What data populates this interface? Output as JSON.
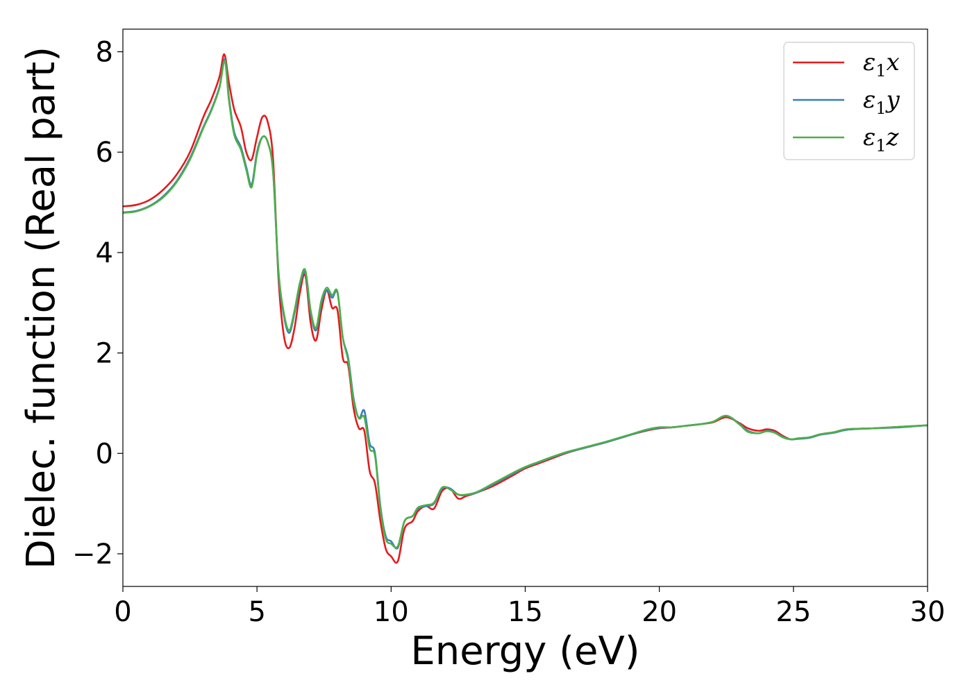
{
  "chart_data": {
    "type": "line",
    "xlabel": "Energy (eV)",
    "ylabel": "Dielec. function (Real part)",
    "xlim": [
      0,
      30
    ],
    "ylim": [
      -2.65,
      8.45
    ],
    "xticks": [
      0,
      5,
      10,
      15,
      20,
      25,
      30
    ],
    "yticks": [
      -2,
      0,
      2,
      4,
      6,
      8
    ],
    "xtick_labels": [
      "0",
      "5",
      "10",
      "15",
      "20",
      "25",
      "30"
    ],
    "ytick_labels": [
      "−2",
      "0",
      "2",
      "4",
      "6",
      "8"
    ],
    "grid": false,
    "legend_position": "top-right",
    "series": [
      {
        "name": "ε₁x",
        "legend_base": "ε",
        "legend_sub": "1",
        "legend_tail": "x",
        "color": "#e41a1c",
        "x": [
          0,
          0.5,
          1,
          1.5,
          2,
          2.5,
          3,
          3.3,
          3.6,
          3.78,
          3.95,
          4.15,
          4.4,
          4.6,
          4.8,
          5.0,
          5.2,
          5.4,
          5.6,
          5.8,
          6.0,
          6.2,
          6.4,
          6.6,
          6.8,
          7.0,
          7.2,
          7.4,
          7.6,
          7.8,
          8.0,
          8.2,
          8.4,
          8.6,
          8.8,
          9.0,
          9.2,
          9.4,
          9.6,
          9.8,
          10.0,
          10.25,
          10.5,
          10.8,
          11.0,
          11.3,
          11.6,
          11.9,
          12.2,
          12.5,
          12.8,
          13.2,
          13.8,
          14.5,
          15.0,
          15.5,
          16.0,
          16.5,
          17.0,
          17.5,
          18.0,
          18.5,
          19.0,
          19.5,
          20.0,
          20.5,
          21.0,
          21.5,
          22.0,
          22.5,
          23.0,
          23.3,
          23.7,
          24.0,
          24.3,
          24.6,
          24.9,
          25.2,
          25.6,
          26.0,
          26.5,
          27.0,
          28.0,
          29.0,
          30.0
        ],
        "y": [
          4.92,
          4.95,
          5.05,
          5.25,
          5.55,
          6.0,
          6.7,
          7.05,
          7.5,
          7.95,
          7.4,
          6.85,
          6.5,
          6.0,
          5.85,
          6.3,
          6.7,
          6.6,
          5.85,
          3.5,
          2.35,
          2.1,
          2.5,
          3.2,
          3.55,
          2.6,
          2.25,
          2.85,
          3.25,
          2.9,
          2.85,
          1.9,
          1.75,
          0.9,
          0.5,
          0.45,
          -0.35,
          -0.6,
          -1.35,
          -1.9,
          -2.05,
          -2.15,
          -1.5,
          -1.35,
          -1.15,
          -1.05,
          -1.1,
          -0.75,
          -0.7,
          -0.9,
          -0.85,
          -0.78,
          -0.65,
          -0.45,
          -0.3,
          -0.2,
          -0.1,
          0.0,
          0.08,
          0.15,
          0.22,
          0.3,
          0.38,
          0.45,
          0.5,
          0.52,
          0.55,
          0.58,
          0.62,
          0.72,
          0.6,
          0.5,
          0.45,
          0.48,
          0.45,
          0.35,
          0.28,
          0.3,
          0.32,
          0.38,
          0.42,
          0.48,
          0.5,
          0.53,
          0.56
        ]
      },
      {
        "name": "ε₁y",
        "legend_base": "ε",
        "legend_sub": "1",
        "legend_tail": "y",
        "color": "#377eb8",
        "x": [
          0,
          0.5,
          1,
          1.5,
          2,
          2.5,
          3,
          3.3,
          3.6,
          3.8,
          3.95,
          4.15,
          4.4,
          4.6,
          4.8,
          5.0,
          5.2,
          5.4,
          5.6,
          5.8,
          6.0,
          6.2,
          6.4,
          6.6,
          6.8,
          7.0,
          7.2,
          7.4,
          7.6,
          7.8,
          8.0,
          8.2,
          8.4,
          8.6,
          8.8,
          9.0,
          9.2,
          9.4,
          9.6,
          9.8,
          10.0,
          10.25,
          10.5,
          10.8,
          11.0,
          11.3,
          11.6,
          11.9,
          12.2,
          12.5,
          12.8,
          13.2,
          13.8,
          14.5,
          15.0,
          15.5,
          16.0,
          16.5,
          17.0,
          17.5,
          18.0,
          18.5,
          19.0,
          19.5,
          20.0,
          20.5,
          21.0,
          21.5,
          22.0,
          22.5,
          23.0,
          23.3,
          23.7,
          24.0,
          24.3,
          24.6,
          24.9,
          25.2,
          25.6,
          26.0,
          26.5,
          27.0,
          28.0,
          29.0,
          30.0
        ],
        "y": [
          4.8,
          4.83,
          4.93,
          5.12,
          5.42,
          5.88,
          6.5,
          6.85,
          7.3,
          7.85,
          7.1,
          6.4,
          6.1,
          5.7,
          5.35,
          6.0,
          6.3,
          6.2,
          5.6,
          3.6,
          2.75,
          2.4,
          2.8,
          3.35,
          3.6,
          2.8,
          2.45,
          3.0,
          3.25,
          3.1,
          3.2,
          2.3,
          1.9,
          1.1,
          0.7,
          0.85,
          0.2,
          0.0,
          -1.05,
          -1.65,
          -1.75,
          -1.88,
          -1.35,
          -1.25,
          -1.1,
          -1.05,
          -1.0,
          -0.7,
          -0.7,
          -0.82,
          -0.83,
          -0.78,
          -0.62,
          -0.42,
          -0.28,
          -0.18,
          -0.08,
          0.01,
          0.08,
          0.15,
          0.22,
          0.3,
          0.38,
          0.46,
          0.51,
          0.52,
          0.55,
          0.58,
          0.63,
          0.75,
          0.58,
          0.45,
          0.4,
          0.45,
          0.42,
          0.33,
          0.28,
          0.29,
          0.31,
          0.37,
          0.41,
          0.47,
          0.5,
          0.52,
          0.56
        ]
      },
      {
        "name": "ε₁z",
        "legend_base": "ε",
        "legend_sub": "1",
        "legend_tail": "z",
        "color": "#4daf4a",
        "x": [
          0,
          0.5,
          1,
          1.5,
          2,
          2.5,
          3,
          3.3,
          3.6,
          3.8,
          3.95,
          4.15,
          4.4,
          4.6,
          4.8,
          5.0,
          5.2,
          5.4,
          5.6,
          5.8,
          6.0,
          6.2,
          6.4,
          6.6,
          6.8,
          7.0,
          7.2,
          7.4,
          7.6,
          7.8,
          8.0,
          8.2,
          8.4,
          8.6,
          8.8,
          9.0,
          9.2,
          9.4,
          9.6,
          9.8,
          10.0,
          10.25,
          10.5,
          10.8,
          11.0,
          11.3,
          11.6,
          11.9,
          12.2,
          12.5,
          12.8,
          13.2,
          13.8,
          14.5,
          15.0,
          15.5,
          16.0,
          16.5,
          17.0,
          17.5,
          18.0,
          18.5,
          19.0,
          19.5,
          20.0,
          20.5,
          21.0,
          21.5,
          22.0,
          22.5,
          23.0,
          23.3,
          23.7,
          24.0,
          24.3,
          24.6,
          24.9,
          25.2,
          25.6,
          26.0,
          26.5,
          27.0,
          28.0,
          29.0,
          30.0
        ],
        "y": [
          4.79,
          4.82,
          4.92,
          5.1,
          5.4,
          5.85,
          6.48,
          6.83,
          7.28,
          7.82,
          7.05,
          6.35,
          6.05,
          5.65,
          5.3,
          5.95,
          6.3,
          6.2,
          5.6,
          3.65,
          2.8,
          2.45,
          2.85,
          3.4,
          3.65,
          2.85,
          2.5,
          3.05,
          3.3,
          3.15,
          3.22,
          2.3,
          1.85,
          1.05,
          0.7,
          0.72,
          0.1,
          -0.05,
          -1.1,
          -1.7,
          -1.8,
          -1.85,
          -1.35,
          -1.25,
          -1.08,
          -1.03,
          -0.98,
          -0.68,
          -0.72,
          -0.82,
          -0.82,
          -0.77,
          -0.6,
          -0.4,
          -0.27,
          -0.17,
          -0.07,
          0.02,
          0.09,
          0.16,
          0.23,
          0.31,
          0.39,
          0.47,
          0.52,
          0.52,
          0.55,
          0.58,
          0.63,
          0.75,
          0.57,
          0.43,
          0.4,
          0.44,
          0.41,
          0.32,
          0.28,
          0.3,
          0.32,
          0.38,
          0.42,
          0.48,
          0.5,
          0.53,
          0.56
        ]
      }
    ]
  }
}
